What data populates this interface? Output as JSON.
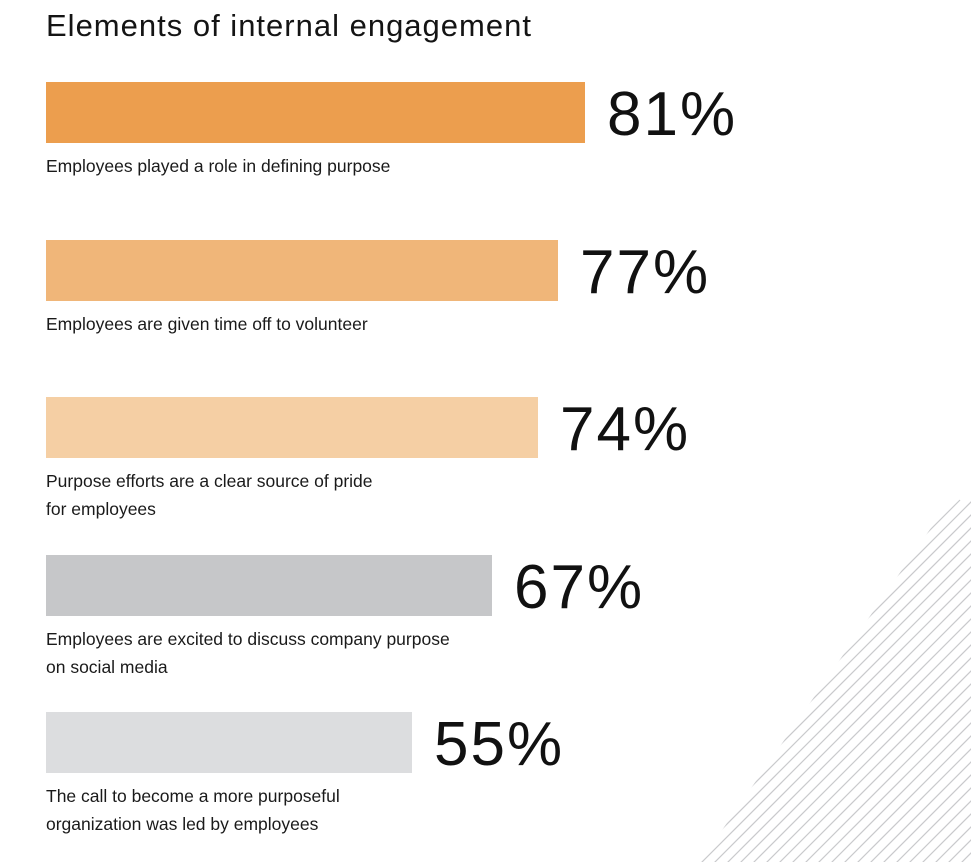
{
  "title": "Elements of internal engagement",
  "chart_data": {
    "type": "bar",
    "orientation": "horizontal",
    "title": "Elements of internal engagement",
    "categories": [
      "Employees played a role in defining purpose",
      "Employees are given time off to volunteer",
      "Purpose efforts are a clear source of pride\nfor employees",
      "Employees are excited to discuss company purpose\non social media",
      "The call to become a more purposeful\norganization was led by employees"
    ],
    "values": [
      81,
      77,
      74,
      67,
      55
    ],
    "value_labels": [
      "81%",
      "77%",
      "74%",
      "67%",
      "55%"
    ],
    "colors": [
      "#ec9e4e",
      "#f0b679",
      "#f5cfa4",
      "#c6c7c9",
      "#dcdddf"
    ],
    "xlim": [
      0,
      100
    ],
    "grid": false,
    "legend": "none"
  }
}
